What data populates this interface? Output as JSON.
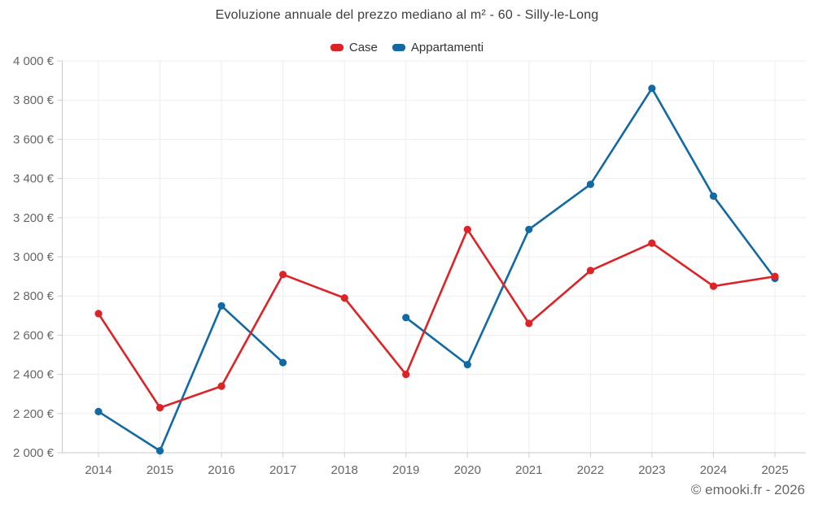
{
  "footer": "© emooki.fr - 2026",
  "chart_data": {
    "type": "line",
    "title": "Evoluzione annuale del prezzo mediano al m² - 60 - Silly-le-Long",
    "xlabel": "",
    "ylabel": "",
    "categories": [
      "2014",
      "2015",
      "2016",
      "2017",
      "2018",
      "2019",
      "2020",
      "2021",
      "2022",
      "2023",
      "2024",
      "2025"
    ],
    "series": [
      {
        "name": "Case",
        "color": "#dc2427",
        "values": [
          2710,
          2230,
          2340,
          2910,
          2790,
          2400,
          3140,
          2660,
          2930,
          3070,
          2850,
          2900
        ]
      },
      {
        "name": "Appartamenti",
        "color": "#1269a4",
        "values": [
          2210,
          2010,
          2750,
          2460,
          null,
          2690,
          2450,
          3140,
          3370,
          3860,
          3310,
          2890
        ]
      }
    ],
    "ylim": [
      2000,
      4000
    ],
    "y_ticks": [
      {
        "value": 2000,
        "label": "2 000 €"
      },
      {
        "value": 2200,
        "label": "2 200 €"
      },
      {
        "value": 2400,
        "label": "2 400 €"
      },
      {
        "value": 2600,
        "label": "2 600 €"
      },
      {
        "value": 2800,
        "label": "2 800 €"
      },
      {
        "value": 3000,
        "label": "3 000 €"
      },
      {
        "value": 3200,
        "label": "3 200 €"
      },
      {
        "value": 3400,
        "label": "3 400 €"
      },
      {
        "value": 3600,
        "label": "3 600 €"
      },
      {
        "value": 3800,
        "label": "3 800 €"
      },
      {
        "value": 4000,
        "label": "4 000 €"
      }
    ],
    "grid": true,
    "legend_position": "top",
    "marker": "circle"
  }
}
